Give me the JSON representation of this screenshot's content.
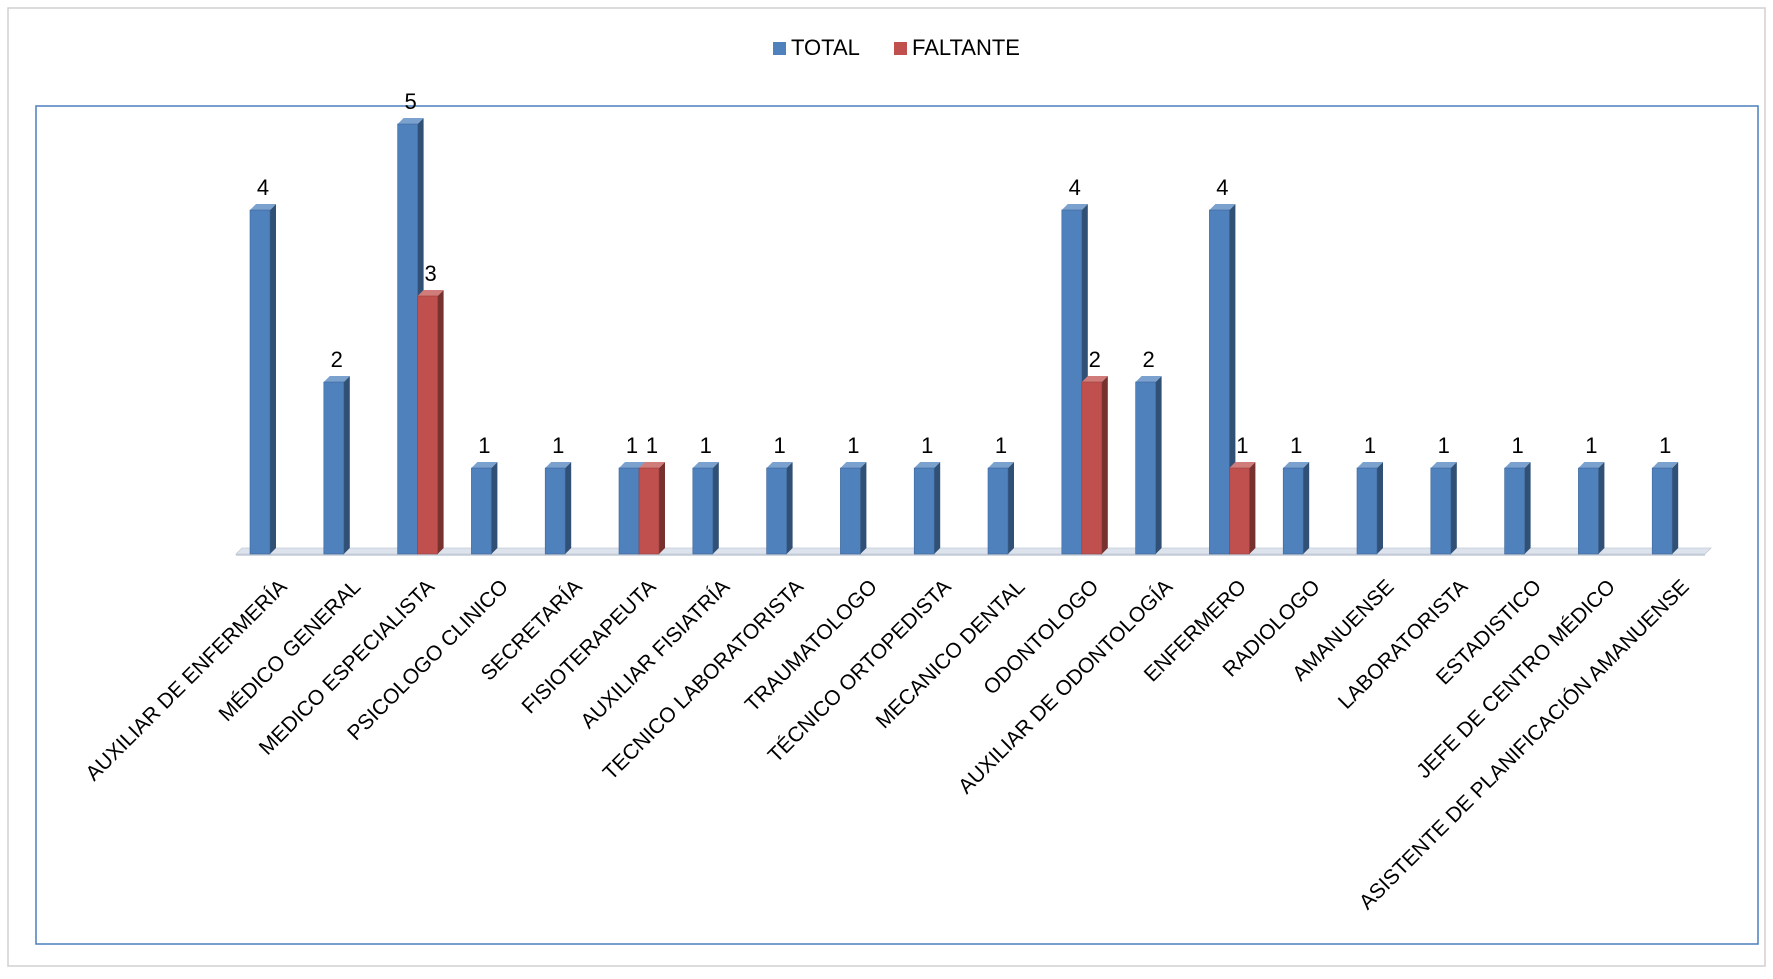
{
  "chart_data": {
    "type": "bar",
    "categories": [
      "AUXILIAR DE ENFERMERÍA",
      "MÉDICO GENERAL",
      "MEDICO ESPECIALISTA",
      "PSICOLOGO CLINICO",
      "SECRETARÍA",
      "FISIOTERAPEUTA",
      "AUXILIAR FISIATRÍA",
      "TECNICO LABORATORISTA",
      "TRAUMATOLOGO",
      "TÉCNICO ORTOPEDISTA",
      "MECANICO DENTAL",
      "ODONTOLOGO",
      "AUXILIAR DE ODONTOLOGÍA",
      "ENFERMERO",
      "RADIOLOGO",
      "AMANUENSE",
      "LABORATORISTA",
      "ESTADISTICO",
      "JEFE DE CENTRO MÉDICO",
      "ASISTENTE DE PLANIFICACIÓN AMANUENSE"
    ],
    "series": [
      {
        "name": "TOTAL",
        "color": "#4f81bd",
        "values": [
          4,
          2,
          5,
          1,
          1,
          1,
          1,
          1,
          1,
          1,
          1,
          4,
          2,
          4,
          1,
          1,
          1,
          1,
          1,
          1
        ]
      },
      {
        "name": "FALTANTE",
        "color": "#c0504d",
        "values": [
          null,
          null,
          3,
          null,
          null,
          1,
          null,
          null,
          null,
          null,
          null,
          2,
          null,
          1,
          null,
          null,
          null,
          null,
          null,
          null
        ]
      }
    ],
    "ylim": [
      0,
      5
    ],
    "grid": false,
    "legend_position": "top-center",
    "data_labels": true,
    "style": "3d-column"
  }
}
